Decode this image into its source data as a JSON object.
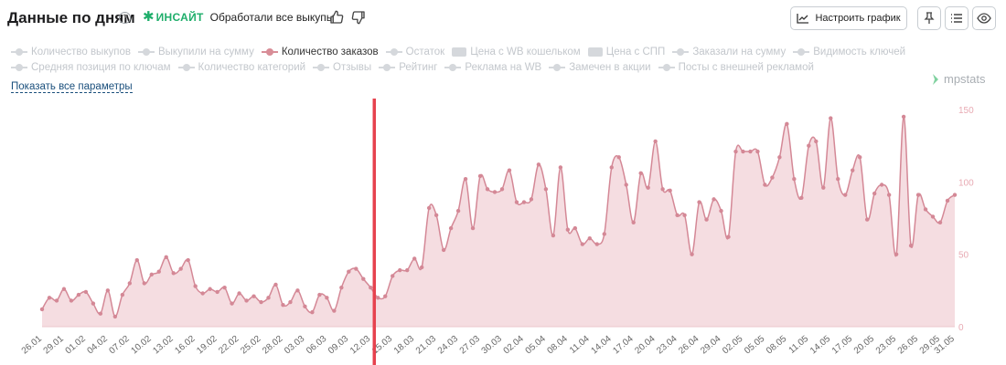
{
  "header": {
    "title": "Данные по дням",
    "help_icon": "question-circle-icon",
    "insight_label": "ИНСАЙТ",
    "insight_note": "Обработали все выкупы",
    "configure_button": "Настроить график",
    "icons": [
      "thumbs-up-icon",
      "thumbs-down-icon",
      "chart-icon",
      "pin-icon",
      "list-icon",
      "eye-icon"
    ]
  },
  "legend": {
    "row1": [
      {
        "label": "Количество выкупов",
        "active": false,
        "kind": "line"
      },
      {
        "label": "Выкупили на сумму",
        "active": false,
        "kind": "line"
      },
      {
        "label": "Количество заказов",
        "active": true,
        "kind": "line"
      },
      {
        "label": "Остаток",
        "active": false,
        "kind": "line"
      },
      {
        "label": "Цена с WB кошельком",
        "active": false,
        "kind": "bar"
      },
      {
        "label": "Цена с СПП",
        "active": false,
        "kind": "bar"
      },
      {
        "label": "Заказали на сумму",
        "active": false,
        "kind": "line"
      },
      {
        "label": "Видимость ключей",
        "active": false,
        "kind": "line"
      }
    ],
    "row2": [
      {
        "label": "Средняя позиция по ключам",
        "active": false,
        "kind": "line"
      },
      {
        "label": "Количество категорий",
        "active": false,
        "kind": "line"
      },
      {
        "label": "Отзывы",
        "active": false,
        "kind": "line"
      },
      {
        "label": "Рейтинг",
        "active": false,
        "kind": "line"
      },
      {
        "label": "Реклама на WB",
        "active": false,
        "kind": "line"
      },
      {
        "label": "Замечен в акции",
        "active": false,
        "kind": "line"
      },
      {
        "label": "Посты с внешней рекламой",
        "active": false,
        "kind": "line"
      }
    ],
    "show_all": "Показать все параметры"
  },
  "brand": "mpstats",
  "colors": {
    "series_line": "#d48896",
    "series_fill": "#f5dde1",
    "marker": "#e6424e",
    "insight": "#1fae6b",
    "axis_text": "#e8aab3"
  },
  "chart_data": {
    "type": "area",
    "series": [
      {
        "name": "Количество заказов",
        "values": [
          12,
          20,
          18,
          26,
          18,
          22,
          24,
          16,
          9,
          25,
          7,
          22,
          30,
          46,
          30,
          36,
          38,
          48,
          37,
          40,
          46,
          28,
          23,
          26,
          24,
          27,
          16,
          23,
          18,
          21,
          17,
          20,
          29,
          15,
          17,
          25,
          14,
          10,
          22,
          20,
          11,
          27,
          38,
          40,
          33,
          27,
          20,
          21,
          35,
          39,
          39,
          47,
          41,
          82,
          77,
          53,
          68,
          80,
          102,
          68,
          104,
          95,
          93,
          95,
          108,
          86,
          86,
          88,
          112,
          95,
          63,
          110,
          67,
          68,
          57,
          61,
          57,
          64,
          110,
          117,
          98,
          72,
          106,
          96,
          128,
          95,
          94,
          77,
          77,
          50,
          86,
          74,
          88,
          80,
          62,
          121,
          121,
          121,
          121,
          98,
          103,
          117,
          140,
          102,
          89,
          125,
          128,
          96,
          144,
          102,
          91,
          108,
          117,
          74,
          92,
          98,
          91,
          50,
          145,
          56,
          91,
          81,
          76,
          72,
          87,
          91
        ]
      }
    ],
    "x_tick_labels": [
      "26.01",
      "29.01",
      "01.02",
      "04.02",
      "07.02",
      "10.02",
      "13.02",
      "16.02",
      "19.02",
      "22.02",
      "25.02",
      "28.02",
      "03.03",
      "06.03",
      "09.03",
      "12.03",
      "15.03",
      "18.03",
      "21.03",
      "24.03",
      "27.03",
      "30.03",
      "02.04",
      "05.04",
      "08.04",
      "11.04",
      "14.04",
      "17.04",
      "20.04",
      "23.04",
      "26.04",
      "29.04",
      "02.05",
      "05.05",
      "08.05",
      "11.05",
      "14.05",
      "17.05",
      "20.05",
      "23.05",
      "26.05",
      "29.05",
      "31.05"
    ],
    "y_ticks": [
      0,
      50,
      100,
      150
    ],
    "ylim": [
      0,
      150
    ],
    "y_axis_side": "right",
    "marker_after_label": "12.03",
    "grid": false
  }
}
